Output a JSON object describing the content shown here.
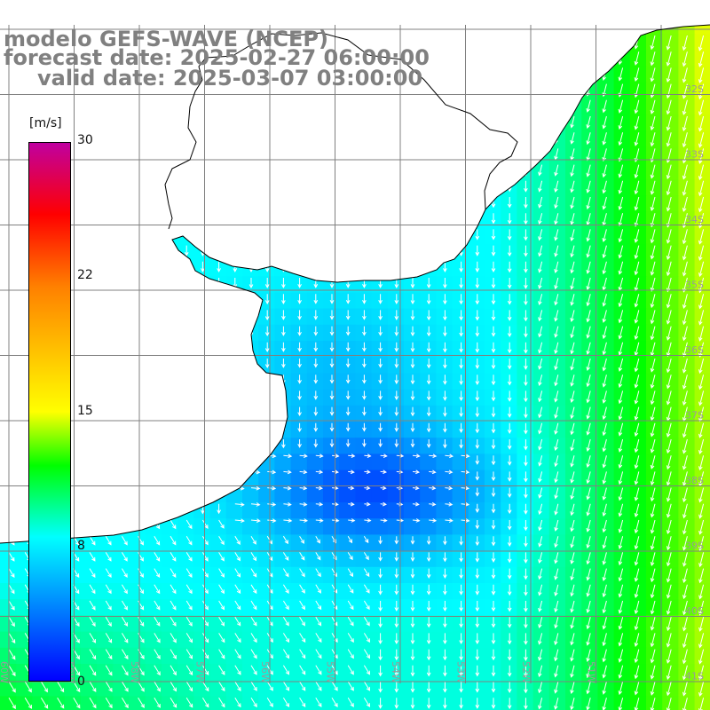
{
  "title": {
    "line1": "modelo GEFS-WAVE (NCEP)",
    "line2": "forecast date: 2025-02-27 06:00:00",
    "line3": "valid date: 2025-03-07 03:00:00"
  },
  "colorbar": {
    "units": "[m/s]",
    "min": 0,
    "max": 30,
    "tick_labels": [
      "30",
      "22",
      "15",
      "8",
      "0"
    ],
    "tick_values": [
      30,
      22,
      15,
      8,
      0
    ],
    "stops": [
      {
        "v": 0,
        "color": "#0000ff"
      },
      {
        "v": 4,
        "color": "#0080ff"
      },
      {
        "v": 8,
        "color": "#00ffff"
      },
      {
        "v": 12,
        "color": "#00ff00"
      },
      {
        "v": 15,
        "color": "#ffff00"
      },
      {
        "v": 22,
        "color": "#ff8000"
      },
      {
        "v": 26,
        "color": "#ff0000"
      },
      {
        "v": 30,
        "color": "#c000a0"
      }
    ]
  },
  "map": {
    "lon_labels": [
      "60W",
      "59W",
      "58W",
      "57W",
      "56W",
      "55W",
      "54W",
      "53W",
      "52W",
      "51W"
    ],
    "lat_labels": [
      "32S",
      "33S",
      "34S",
      "35S",
      "36S",
      "37S",
      "38S",
      "39S",
      "40S",
      "41S"
    ],
    "land_color": "#ffffff",
    "coast_color": "#000000",
    "grid_color": "#808080",
    "arrow_color": "#ffffff"
  }
}
